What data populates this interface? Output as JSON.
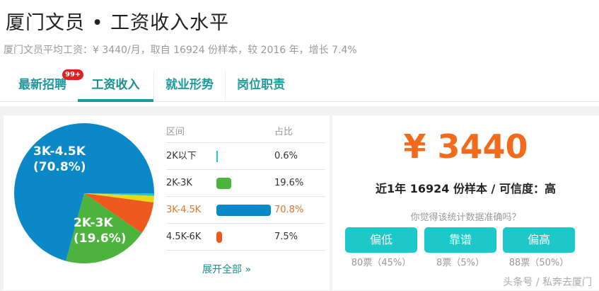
{
  "header": {
    "title": "厦门文员 • 工资收入水平",
    "subtitle": "厦门文员平均工资：¥ 3440/月，取自 16924 份样本，较 2016 年，增长 7.4%"
  },
  "tabs": [
    {
      "label": "最新招聘",
      "badge": "99+"
    },
    {
      "label": "工资收入",
      "active": true
    },
    {
      "label": "就业形势"
    },
    {
      "label": "岗位职责"
    }
  ],
  "table": {
    "headers": [
      "区间",
      "占比"
    ],
    "expand": "展开全部 »"
  },
  "chart_data": {
    "type": "pie",
    "slices": [
      {
        "label": "2K以下",
        "value": 0.6,
        "pct": "0.6%",
        "color": "#1ec8d0"
      },
      {
        "label": "2K-3K",
        "value": 19.6,
        "pct": "19.6%",
        "color": "#4cb43c"
      },
      {
        "label": "3K-4.5K",
        "value": 70.8,
        "pct": "70.8%",
        "color": "#0a88c8",
        "highlight": true
      },
      {
        "label": "4.5K-6K",
        "value": 7.5,
        "pct": "7.5%",
        "color": "#ee5a1e"
      }
    ],
    "other_color": "#e8d81c",
    "pie_labels": [
      {
        "name": "3K-4.5K",
        "pct": "(70.8%)"
      },
      {
        "name": "2K-3K",
        "pct": "(19.6%)"
      }
    ]
  },
  "summary": {
    "price": "¥ 3440",
    "stat": "近1年 16924 份样本 / 可信度：高",
    "question": "你觉得该统计数据准确吗？",
    "votes": [
      {
        "label": "偏低",
        "count": "80票（45%）"
      },
      {
        "label": "靠谱",
        "count": "8票（5%）"
      },
      {
        "label": "偏高",
        "count": "88票（50%）"
      }
    ]
  },
  "watermark": "头条号 / 私奔去厦门",
  "colors": {
    "accent": "#1f9a9c",
    "price": "#f26b1d",
    "vote": "#1ec8c8",
    "highlight": "#e0762b"
  }
}
